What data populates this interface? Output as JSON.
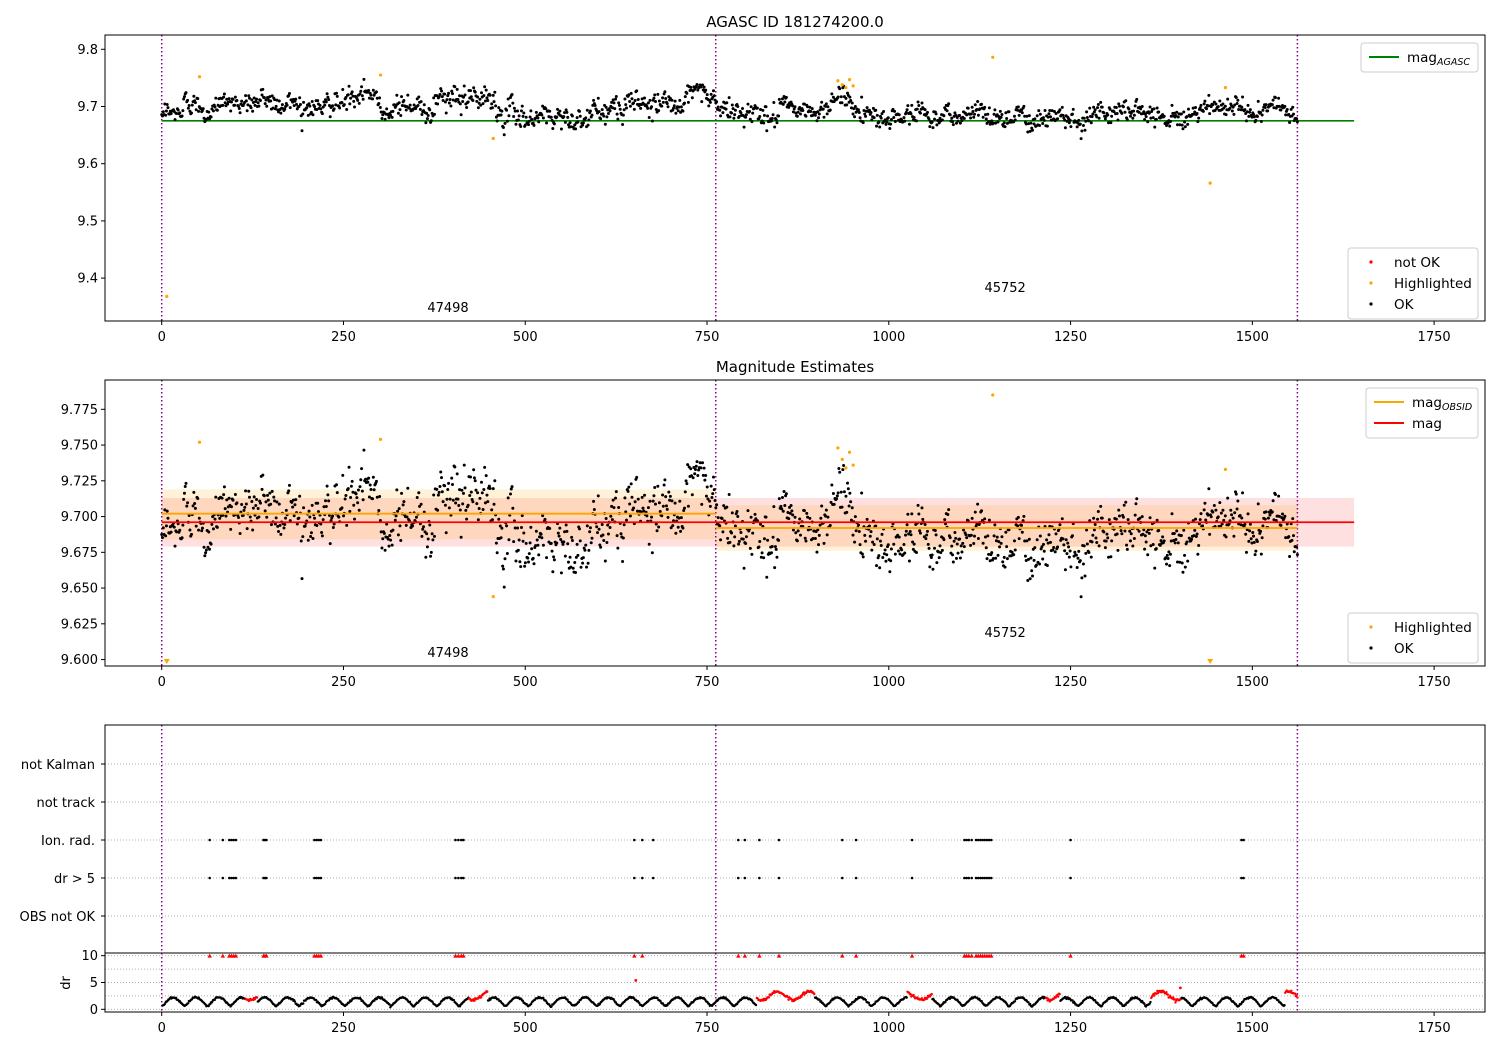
{
  "colors": {
    "ok": "#000000",
    "highlighted": "#ffa500",
    "not_ok": "#ff0000",
    "agasc_line": "#008000",
    "obsid_line": "#ffa500",
    "mag_line": "#ff0000",
    "obs_boundary": "#800080",
    "grid": "#b0b0b0"
  },
  "obs_boundaries": [
    0,
    762,
    1562
  ],
  "obsids": [
    {
      "label": "47498",
      "x": 380
    },
    {
      "label": "45752",
      "x": 1160
    }
  ],
  "chart_data": [
    {
      "type": "scatter",
      "title": "AGASC ID 181274200.0",
      "xlim": [
        -78,
        1820
      ],
      "ylim": [
        9.325,
        9.825
      ],
      "xticks": [
        "0",
        "250",
        "500",
        "750",
        "1000",
        "1250",
        "1500",
        "1750"
      ],
      "yticks": [
        "9.4",
        "9.5",
        "9.6",
        "9.7",
        "9.8"
      ],
      "legend_lines": [
        {
          "label": "mag",
          "sub": "AGASC",
          "color": "#008000"
        }
      ],
      "legend_points": [
        {
          "label": "not OK",
          "color": "#ff0000"
        },
        {
          "label": "Highlighted",
          "color": "#ffa500"
        },
        {
          "label": "OK",
          "color": "#000000"
        }
      ],
      "lines": [
        {
          "name": "mag_AGASC",
          "x": [
            0,
            1640
          ],
          "y": [
            9.675,
            9.675
          ]
        }
      ],
      "highlighted": [
        [
          7,
          9.368
        ],
        [
          52,
          9.752
        ],
        [
          301,
          9.755
        ],
        [
          456,
          9.644
        ],
        [
          930,
          9.745
        ],
        [
          936,
          9.738
        ],
        [
          941,
          9.733
        ],
        [
          946,
          9.747
        ],
        [
          951,
          9.736
        ],
        [
          1143,
          9.786
        ],
        [
          1442,
          9.566
        ],
        [
          1463,
          9.733
        ]
      ],
      "ok_model": {
        "count": 1450,
        "x_range": [
          0,
          1562
        ],
        "segments": [
          {
            "x0": 0,
            "x1": 30,
            "mean": 9.682,
            "scatter": 0.013
          },
          {
            "x0": 30,
            "x1": 330,
            "mean": 9.708,
            "scatter": 0.015
          },
          {
            "x0": 330,
            "x1": 460,
            "mean": 9.706,
            "scatter": 0.016
          },
          {
            "x0": 460,
            "x1": 640,
            "mean": 9.688,
            "scatter": 0.016
          },
          {
            "x0": 640,
            "x1": 762,
            "mean": 9.712,
            "scatter": 0.015
          },
          {
            "x0": 762,
            "x1": 920,
            "mean": 9.69,
            "scatter": 0.015
          },
          {
            "x0": 920,
            "x1": 960,
            "mean": 9.708,
            "scatter": 0.018
          },
          {
            "x0": 960,
            "x1": 1300,
            "mean": 9.688,
            "scatter": 0.014
          },
          {
            "x0": 1300,
            "x1": 1562,
            "mean": 9.693,
            "scatter": 0.014
          }
        ]
      }
    },
    {
      "type": "scatter",
      "title": "Magnitude Estimates",
      "xlim": [
        -78,
        1820
      ],
      "ylim": [
        9.5955,
        9.7955
      ],
      "xticks": [
        "0",
        "250",
        "500",
        "750",
        "1000",
        "1250",
        "1500",
        "1750"
      ],
      "yticks": [
        "9.600",
        "9.625",
        "9.650",
        "9.675",
        "9.700",
        "9.725",
        "9.750",
        "9.775"
      ],
      "legend_lines": [
        {
          "label": "mag",
          "sub": "OBSID",
          "color": "#ffa500"
        },
        {
          "label": "mag",
          "sub": "",
          "color": "#ff0000"
        }
      ],
      "legend_points": [
        {
          "label": "Highlighted",
          "color": "#ffa500"
        },
        {
          "label": "OK",
          "color": "#000000"
        }
      ],
      "lines": [
        {
          "name": "mag_OBSID_47498",
          "x": [
            0,
            762
          ],
          "y": [
            9.702,
            9.702
          ],
          "color": "#ffa500"
        },
        {
          "name": "mag_OBSID_45752",
          "x": [
            762,
            1562
          ],
          "y": [
            9.692,
            9.692
          ],
          "color": "#ffa500"
        },
        {
          "name": "mag",
          "x": [
            0,
            1640
          ],
          "y": [
            9.696,
            9.696
          ],
          "color": "#ff0000"
        }
      ],
      "bands": [
        {
          "x": [
            0,
            1640
          ],
          "y": [
            9.679,
            9.713
          ],
          "color": "#ff0000",
          "opacity": 0.12
        },
        {
          "x": [
            0,
            762
          ],
          "y": [
            9.684,
            9.719
          ],
          "color": "#ffa500",
          "opacity": 0.15
        },
        {
          "x": [
            762,
            1562
          ],
          "y": [
            9.676,
            9.708
          ],
          "color": "#ffa500",
          "opacity": 0.15
        }
      ],
      "highlighted": [
        [
          52,
          9.752
        ],
        [
          301,
          9.754
        ],
        [
          456,
          9.644
        ],
        [
          930,
          9.748
        ],
        [
          936,
          9.74
        ],
        [
          941,
          9.734
        ],
        [
          946,
          9.745
        ],
        [
          951,
          9.736
        ],
        [
          1143,
          9.785
        ],
        [
          1463,
          9.733
        ]
      ],
      "clipped_markers": [
        [
          7,
          9.599
        ],
        [
          1442,
          9.599
        ]
      ],
      "ok_model": {
        "count": 1450,
        "x_range": [
          0,
          1562
        ],
        "segments": [
          {
            "x0": 0,
            "x1": 30,
            "mean": 9.684,
            "scatter": 0.012
          },
          {
            "x0": 30,
            "x1": 330,
            "mean": 9.707,
            "scatter": 0.015
          },
          {
            "x0": 330,
            "x1": 460,
            "mean": 9.706,
            "scatter": 0.016
          },
          {
            "x0": 460,
            "x1": 640,
            "mean": 9.688,
            "scatter": 0.016
          },
          {
            "x0": 640,
            "x1": 762,
            "mean": 9.712,
            "scatter": 0.015
          },
          {
            "x0": 762,
            "x1": 920,
            "mean": 9.69,
            "scatter": 0.015
          },
          {
            "x0": 920,
            "x1": 960,
            "mean": 9.708,
            "scatter": 0.018
          },
          {
            "x0": 960,
            "x1": 1300,
            "mean": 9.688,
            "scatter": 0.014
          },
          {
            "x0": 1300,
            "x1": 1562,
            "mean": 9.693,
            "scatter": 0.014
          }
        ]
      }
    },
    {
      "type": "scatter",
      "title": "",
      "xlim": [
        -78,
        1820
      ],
      "categories": [
        "OBS not OK",
        "dr > 5",
        "Ion. rad.",
        "not track",
        "not Kalman"
      ],
      "flag_x": [
        66,
        84,
        93,
        96,
        99,
        102,
        140,
        142,
        144,
        210,
        213,
        216,
        219,
        404,
        408,
        412,
        415,
        650,
        661,
        676,
        793,
        802,
        822,
        849,
        936,
        955,
        1032,
        1104,
        1107,
        1110,
        1114,
        1120,
        1123,
        1126,
        1129,
        1132,
        1135,
        1138,
        1141,
        1250,
        1485,
        1488
      ]
    },
    {
      "type": "scatter",
      "title": "",
      "xlim": [
        -78,
        1820
      ],
      "ylim": [
        -0.5,
        10.5
      ],
      "xticks": [
        "0",
        "250",
        "500",
        "750",
        "1000",
        "1250",
        "1500",
        "1750"
      ],
      "yticks": [
        "0",
        "5",
        "10"
      ],
      "ylabel": "dr",
      "dr_clip": 10,
      "red_clipped_x": [
        66,
        84,
        93,
        96,
        99,
        102,
        140,
        142,
        144,
        210,
        213,
        216,
        219,
        404,
        408,
        412,
        415,
        650,
        661,
        793,
        802,
        822,
        849,
        936,
        955,
        1032,
        1104,
        1107,
        1110,
        1114,
        1120,
        1123,
        1126,
        1129,
        1132,
        1135,
        1138,
        1141,
        1250,
        1485,
        1488
      ],
      "red_segments": [
        [
          115,
          132
        ],
        [
          422,
          448
        ],
        [
          818,
          898
        ],
        [
          1025,
          1060
        ],
        [
          1216,
          1235
        ],
        [
          1360,
          1402
        ],
        [
          1545,
          1562
        ]
      ],
      "red_isolated": [
        [
          652,
          5.4
        ],
        [
          1401,
          4.0
        ]
      ]
    }
  ]
}
